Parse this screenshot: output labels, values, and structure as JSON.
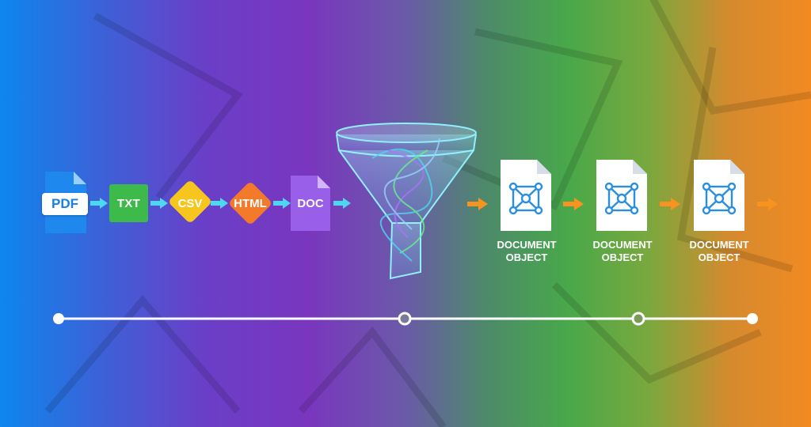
{
  "inputs": {
    "pdf": "PDF",
    "txt": "TXT",
    "csv": "CSV",
    "html": "HTML",
    "doc": "DOC"
  },
  "outputs": [
    {
      "line1": "DOCUMENT",
      "line2": "OBJECT"
    },
    {
      "line1": "DOCUMENT",
      "line2": "OBJECT"
    },
    {
      "line1": "DOCUMENT",
      "line2": "OBJECT"
    }
  ],
  "colors": {
    "input_arrow": "#4fd6f0",
    "output_arrow": "#f7931e",
    "txt": "#3dba4a",
    "csv": "#f6c51e",
    "html": "#f37a2a",
    "doc": "#9a5fe8",
    "pdf": "#1a7fe3",
    "funnel": "#7fe8ff",
    "node_icon": "#2a8fe0"
  },
  "icons": [
    "funnel-icon",
    "node-graph-icon",
    "document-icon"
  ]
}
